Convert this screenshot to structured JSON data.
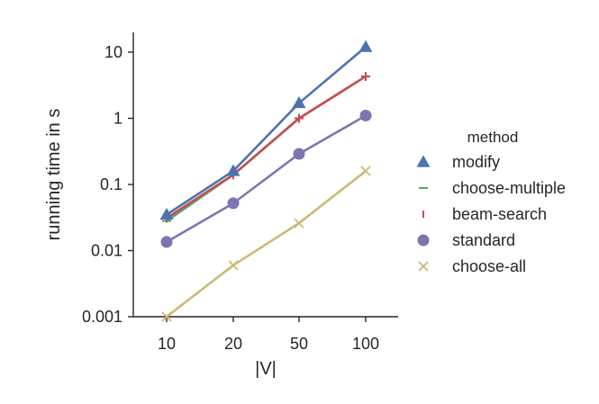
{
  "chart_data": {
    "type": "line",
    "title": "",
    "xlabel": "|V|",
    "ylabel": "running time in s",
    "x_scale": "categorical",
    "y_scale": "log",
    "categories": [
      "10",
      "20",
      "50",
      "100"
    ],
    "ylim": [
      0.001,
      20
    ],
    "yticks": [
      {
        "value": 0.001,
        "label": "0.001"
      },
      {
        "value": 0.01,
        "label": "0.01"
      },
      {
        "value": 0.1,
        "label": "0.1"
      },
      {
        "value": 1,
        "label": "1"
      },
      {
        "value": 10,
        "label": "10"
      }
    ],
    "legend": {
      "title": "method",
      "placement": "right"
    },
    "series": [
      {
        "name": "modify",
        "marker": "triangle",
        "color": "#4C72B0",
        "values": [
          0.035,
          0.16,
          1.7,
          12
        ]
      },
      {
        "name": "choose-multiple",
        "marker": "hline",
        "color": "#55A868",
        "values": [
          0.028,
          0.14,
          1.0,
          4.3
        ]
      },
      {
        "name": "beam-search",
        "marker": "plus",
        "color": "#C44E52",
        "values": [
          0.031,
          0.14,
          1.0,
          4.3
        ]
      },
      {
        "name": "standard",
        "marker": "circle",
        "color": "#8172B2",
        "values": [
          0.0135,
          0.052,
          0.29,
          1.1
        ]
      },
      {
        "name": "choose-all",
        "marker": "x",
        "color": "#CCB974",
        "values": [
          0.001,
          0.006,
          0.026,
          0.16
        ]
      }
    ]
  }
}
